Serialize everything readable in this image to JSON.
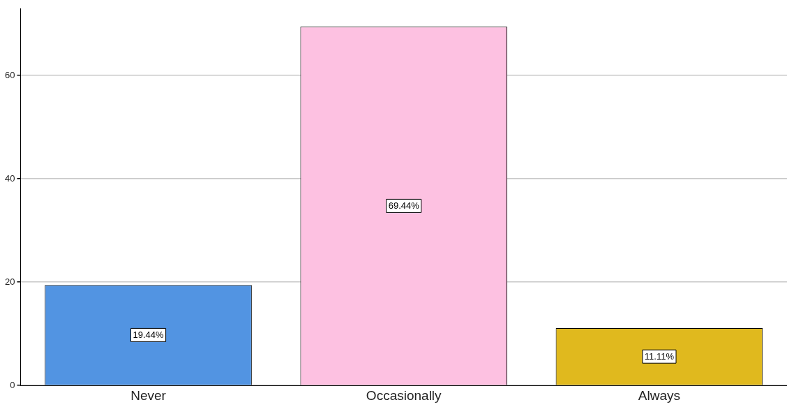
{
  "chart_data": {
    "type": "bar",
    "categories": [
      "Never",
      "Occasionally",
      "Always"
    ],
    "values": [
      19.44,
      69.44,
      11.11
    ],
    "colors": [
      "#5294e2",
      "#fdc1e1",
      "#e0b91e"
    ],
    "value_labels": [
      "19.44%",
      "69.44%",
      "11.11%"
    ],
    "ylim": [
      0,
      73
    ],
    "yticks": [
      0,
      20,
      40,
      60
    ],
    "grid": "y",
    "legend": false
  }
}
